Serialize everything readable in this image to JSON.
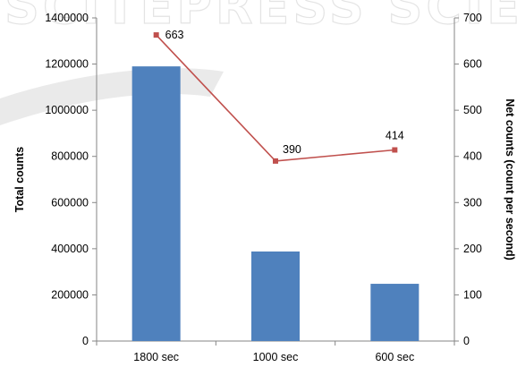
{
  "watermark_text": "SCITEPRESS SCIENCE AND TECHNOLOGY PUBLICATIONS",
  "chart_data": {
    "type": "bar",
    "categories": [
      "1800 sec",
      "1000 sec",
      "600 sec"
    ],
    "series": [
      {
        "type": "bar",
        "axis": "left",
        "color": "#4f81bd",
        "values": [
          1190000,
          388000,
          248000
        ]
      },
      {
        "type": "line",
        "axis": "right",
        "color": "#c0504d",
        "values": [
          663,
          390,
          414
        ],
        "data_labels": [
          "663",
          "390",
          "414"
        ]
      }
    ],
    "ylabel": "Total counts",
    "y2label": "Net counts (count per second)",
    "ylim": [
      0,
      1400000
    ],
    "y2lim": [
      0,
      700
    ],
    "yticks": [
      "0",
      "200000",
      "400000",
      "600000",
      "800000",
      "1000000",
      "1200000",
      "1400000"
    ],
    "y2ticks": [
      "0",
      "100",
      "200",
      "300",
      "400",
      "500",
      "600",
      "700"
    ],
    "grid": false,
    "legend": "none"
  }
}
